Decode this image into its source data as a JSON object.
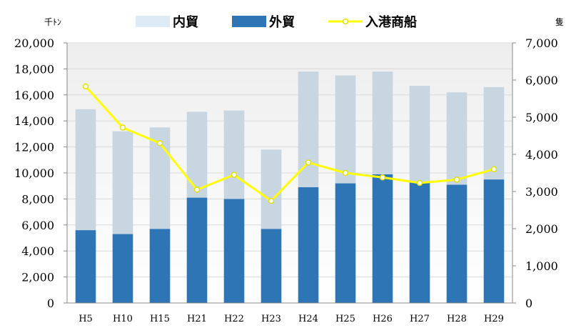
{
  "chart_data": {
    "type": "bar",
    "stacked": true,
    "categories": [
      "H5",
      "H10",
      "H15",
      "H21",
      "H22",
      "H23",
      "H24",
      "H25",
      "H26",
      "H27",
      "H28",
      "H29"
    ],
    "series": [
      {
        "name": "外貿",
        "axis": "left",
        "kind": "bar",
        "color": "#2e75b6",
        "values": [
          5600,
          5300,
          5700,
          8100,
          8000,
          5700,
          8900,
          9200,
          9900,
          9300,
          9100,
          9500
        ]
      },
      {
        "name": "内貿",
        "axis": "left",
        "kind": "bar",
        "color": "#c8d6e2",
        "values": [
          9300,
          7900,
          7800,
          6600,
          6800,
          6100,
          8900,
          8300,
          7900,
          7400,
          7100,
          7100
        ]
      },
      {
        "name": "入港商船",
        "axis": "right",
        "kind": "line",
        "color": "#ffff00",
        "values": [
          5830,
          4720,
          4300,
          3050,
          3450,
          2750,
          3780,
          3500,
          3380,
          3230,
          3320,
          3600
        ]
      }
    ],
    "y_left": {
      "unit": "千ﾄﾝ",
      "min": 0,
      "max": 20000,
      "step": 2000,
      "ticks": [
        "0",
        "2,000",
        "4,000",
        "6,000",
        "8,000",
        "10,000",
        "12,000",
        "14,000",
        "16,000",
        "18,000",
        "20,000"
      ]
    },
    "y_right": {
      "unit": "隻",
      "min": 0,
      "max": 7000,
      "step": 1000,
      "ticks": [
        "0",
        "1,000",
        "2,000",
        "3,000",
        "4,000",
        "5,000",
        "6,000",
        "7,000"
      ]
    },
    "legend": {
      "placement": "top",
      "order": [
        "内貿",
        "外貿",
        "入港商船"
      ]
    },
    "grid": true
  }
}
